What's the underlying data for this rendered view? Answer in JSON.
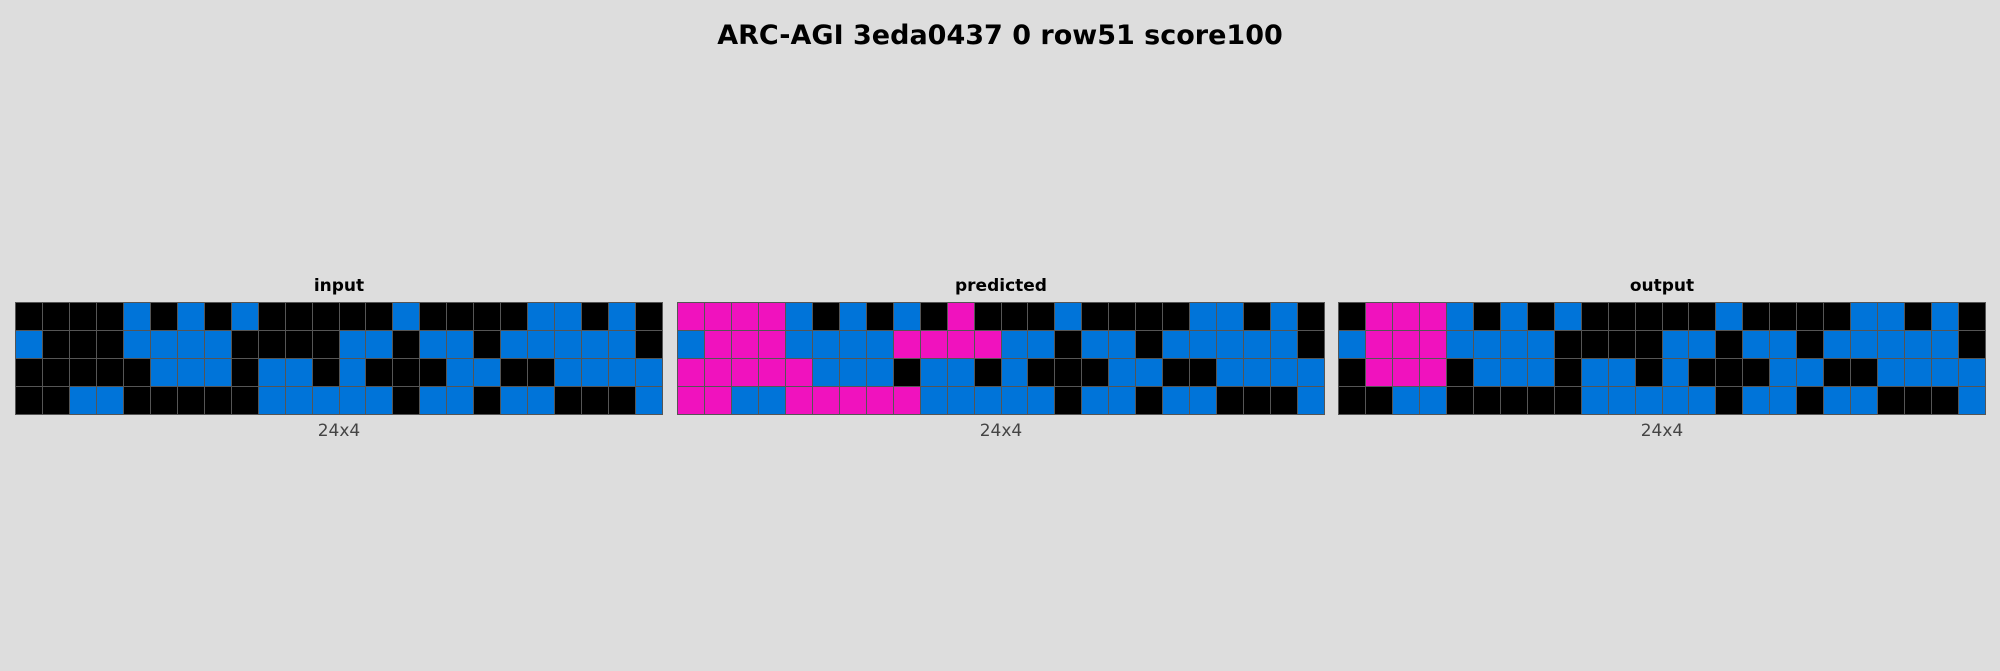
{
  "title": "ARC-AGI 3eda0437 0 row51 score100",
  "palette": {
    "0": "#000000",
    "1": "#0074d9",
    "6": "#f012be"
  },
  "panels": [
    {
      "label": "input",
      "dims": "24x4",
      "grid": [
        [
          0,
          0,
          0,
          0,
          1,
          0,
          1,
          0,
          1,
          0,
          0,
          0,
          0,
          0,
          1,
          0,
          0,
          0,
          0,
          1,
          1,
          0,
          1,
          0
        ],
        [
          1,
          0,
          0,
          0,
          1,
          1,
          1,
          1,
          0,
          0,
          0,
          0,
          1,
          1,
          0,
          1,
          1,
          0,
          1,
          1,
          1,
          1,
          1,
          0
        ],
        [
          0,
          0,
          0,
          0,
          0,
          1,
          1,
          1,
          0,
          1,
          1,
          0,
          1,
          0,
          0,
          0,
          1,
          1,
          0,
          0,
          1,
          1,
          1,
          1
        ],
        [
          0,
          0,
          1,
          1,
          0,
          0,
          0,
          0,
          0,
          1,
          1,
          1,
          1,
          1,
          0,
          1,
          1,
          0,
          1,
          1,
          0,
          0,
          0,
          1
        ]
      ]
    },
    {
      "label": "predicted",
      "dims": "24x4",
      "grid": [
        [
          6,
          6,
          6,
          6,
          1,
          0,
          1,
          0,
          1,
          0,
          6,
          0,
          0,
          0,
          1,
          0,
          0,
          0,
          0,
          1,
          1,
          0,
          1,
          0
        ],
        [
          1,
          6,
          6,
          6,
          1,
          1,
          1,
          1,
          6,
          6,
          6,
          6,
          1,
          1,
          0,
          1,
          1,
          0,
          1,
          1,
          1,
          1,
          1,
          0
        ],
        [
          6,
          6,
          6,
          6,
          6,
          1,
          1,
          1,
          0,
          1,
          1,
          0,
          1,
          0,
          0,
          0,
          1,
          1,
          0,
          0,
          1,
          1,
          1,
          1
        ],
        [
          6,
          6,
          1,
          1,
          6,
          6,
          6,
          6,
          6,
          1,
          1,
          1,
          1,
          1,
          0,
          1,
          1,
          0,
          1,
          1,
          0,
          0,
          0,
          1
        ]
      ]
    },
    {
      "label": "output",
      "dims": "24x4",
      "grid": [
        [
          0,
          6,
          6,
          6,
          1,
          0,
          1,
          0,
          1,
          0,
          0,
          0,
          0,
          0,
          1,
          0,
          0,
          0,
          0,
          1,
          1,
          0,
          1,
          0
        ],
        [
          1,
          6,
          6,
          6,
          1,
          1,
          1,
          1,
          0,
          0,
          0,
          0,
          1,
          1,
          0,
          1,
          1,
          0,
          1,
          1,
          1,
          1,
          1,
          0
        ],
        [
          0,
          6,
          6,
          6,
          0,
          1,
          1,
          1,
          0,
          1,
          1,
          0,
          1,
          0,
          0,
          0,
          1,
          1,
          0,
          0,
          1,
          1,
          1,
          1
        ],
        [
          0,
          0,
          1,
          1,
          0,
          0,
          0,
          0,
          0,
          1,
          1,
          1,
          1,
          1,
          0,
          1,
          1,
          0,
          1,
          1,
          0,
          0,
          0,
          1
        ]
      ]
    }
  ]
}
